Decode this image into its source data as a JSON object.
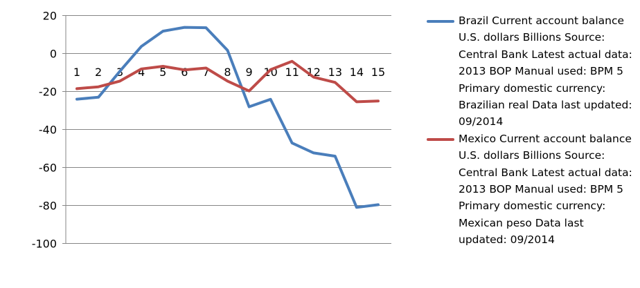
{
  "chart_data": {
    "type": "line",
    "x": [
      1,
      2,
      3,
      4,
      5,
      6,
      7,
      8,
      9,
      10,
      11,
      12,
      13,
      14,
      15
    ],
    "y_ticks": [
      20,
      0,
      -20,
      -40,
      -60,
      -80,
      -100
    ],
    "ylim": [
      -100,
      20
    ],
    "grid": "horizontal",
    "legend_position": "right",
    "series": [
      {
        "name": "Brazil Current account balance U.S. dollars Billions Source: Central Bank Latest actual data: 2013 BOP Manual used: BPM 5 Primary domestic currency: Brazilian real Data last updated: 09/2014",
        "color": "#4a7ebb",
        "values": [
          -24.2,
          -23.2,
          -9.5,
          3.6,
          11.6,
          13.6,
          13.4,
          1.5,
          -28.2,
          -24.3,
          -47.3,
          -52.5,
          -54.2,
          -81.2,
          -79.8
        ]
      },
      {
        "name": "Mexico Current account balance U.S. dollars Billions Source: Central Bank Latest actual data: 2013 BOP Manual used: BPM 5 Primary domestic currency: Mexican peso Data last updated: 09/2014",
        "color": "#be4b48",
        "values": [
          -18.7,
          -17.7,
          -14.7,
          -8.3,
          -6.9,
          -8.8,
          -7.8,
          -14.7,
          -19.9,
          -8.7,
          -4.3,
          -12.6,
          -15.4,
          -25.6,
          -25.2
        ]
      }
    ]
  }
}
